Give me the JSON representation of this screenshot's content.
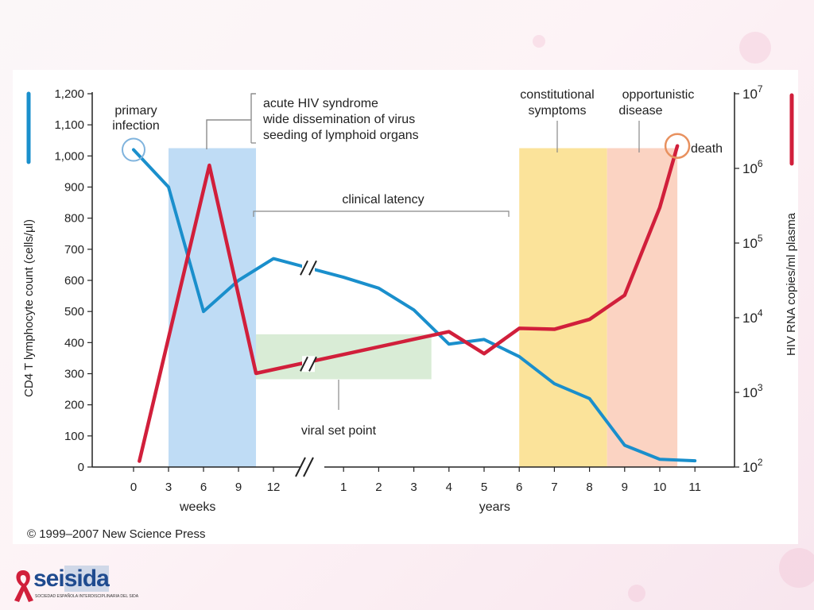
{
  "chart_data": {
    "type": "line",
    "left_axis": {
      "label": "CD4 T lymphocyte count (cells/µl)",
      "ticks": [
        "1,200",
        "1,100",
        "1,000",
        "900",
        "800",
        "700",
        "600",
        "500",
        "400",
        "300",
        "200",
        "100",
        "0"
      ],
      "range": [
        0,
        1200
      ],
      "color": "#1a8fcc"
    },
    "right_axis": {
      "label": "HIV RNA copies/ml plasma",
      "ticks": [
        {
          "base": "10",
          "exp": "7"
        },
        {
          "base": "10",
          "exp": "6"
        },
        {
          "base": "10",
          "exp": "5"
        },
        {
          "base": "10",
          "exp": "4"
        },
        {
          "base": "10",
          "exp": "3"
        },
        {
          "base": "10",
          "exp": "2"
        }
      ],
      "scale": "log",
      "range": [
        100,
        10000000
      ],
      "color": "#d11f3b"
    },
    "x_axis": {
      "weeks_ticks": [
        "0",
        "3",
        "6",
        "9",
        "12"
      ],
      "weeks_label": "weeks",
      "years_ticks": [
        "1",
        "2",
        "3",
        "4",
        "5",
        "6",
        "7",
        "8",
        "9",
        "10",
        "11"
      ],
      "years_label": "years"
    },
    "series": [
      {
        "axis": "left",
        "color": "#1a8fcc",
        "points": [
          {
            "t": "0 weeks",
            "v": 1020
          },
          {
            "t": "3 weeks",
            "v": 900
          },
          {
            "t": "6 weeks",
            "v": 500
          },
          {
            "t": "9 weeks",
            "v": 600
          },
          {
            "t": "12 weeks",
            "v": 670
          },
          {
            "t": "1 years",
            "v": 610
          },
          {
            "t": "2 years",
            "v": 575
          },
          {
            "t": "3 years",
            "v": 505
          },
          {
            "t": "4 years",
            "v": 395
          },
          {
            "t": "5 years",
            "v": 410
          },
          {
            "t": "6 years",
            "v": 355
          },
          {
            "t": "7 years",
            "v": 268
          },
          {
            "t": "8 years",
            "v": 220
          },
          {
            "t": "9 years",
            "v": 70
          },
          {
            "t": "10 years",
            "v": 25
          },
          {
            "t": "11 years",
            "v": 20
          }
        ]
      },
      {
        "axis": "right",
        "color": "#d11f3b",
        "points": [
          {
            "t": "0.5 weeks",
            "v": 120
          },
          {
            "t": "6.5 weeks",
            "v": 1100000
          },
          {
            "t": "10.5 weeks",
            "v": 1800
          },
          {
            "t": "4 years",
            "v": 6500
          },
          {
            "t": "5 years",
            "v": 3300
          },
          {
            "t": "6 years",
            "v": 7200
          },
          {
            "t": "7 years",
            "v": 7000
          },
          {
            "t": "8 years",
            "v": 9500
          },
          {
            "t": "9 years",
            "v": 20000
          },
          {
            "t": "10 years",
            "v": 300000
          },
          {
            "t": "10.5 years",
            "v": 2000000
          }
        ]
      }
    ],
    "regions": [
      {
        "label": "acute HIV syndrome",
        "color": "#bfdcf5",
        "from": "3 weeks",
        "to": "10.5 weeks"
      },
      {
        "label": "constitutional symptoms",
        "color": "#fbe39a",
        "from": "6 years",
        "to": "8.5 years"
      },
      {
        "label": "opportunistic disease",
        "color": "#fbd3c2",
        "from": "8.5 years",
        "to": "10.5 years"
      },
      {
        "label": "viral set point",
        "color": "#d9ecd6",
        "from": "10.5 weeks",
        "to": "3.5 years",
        "rna_range": [
          1500,
          6000
        ]
      }
    ],
    "annotations": {
      "primary": [
        "primary",
        "infection"
      ],
      "acute": [
        "acute HIV syndrome",
        "wide dissemination of virus",
        "seeding of lymphoid organs"
      ],
      "latency": "clinical latency",
      "constitutional": [
        "constitutional",
        "symptoms"
      ],
      "opportunistic": [
        "opportunistic",
        "disease"
      ],
      "death": "death",
      "setpoint": "viral set point"
    }
  },
  "copyright": "© 1999–2007 New Science Press",
  "logo": {
    "text_a": "sei",
    "text_b": "sida",
    "subtitle": "SOCIEDAD ESPAÑOLA INTERDISCIPLINARIA DEL SIDA",
    "ribbon_color": "#d11f3b"
  }
}
